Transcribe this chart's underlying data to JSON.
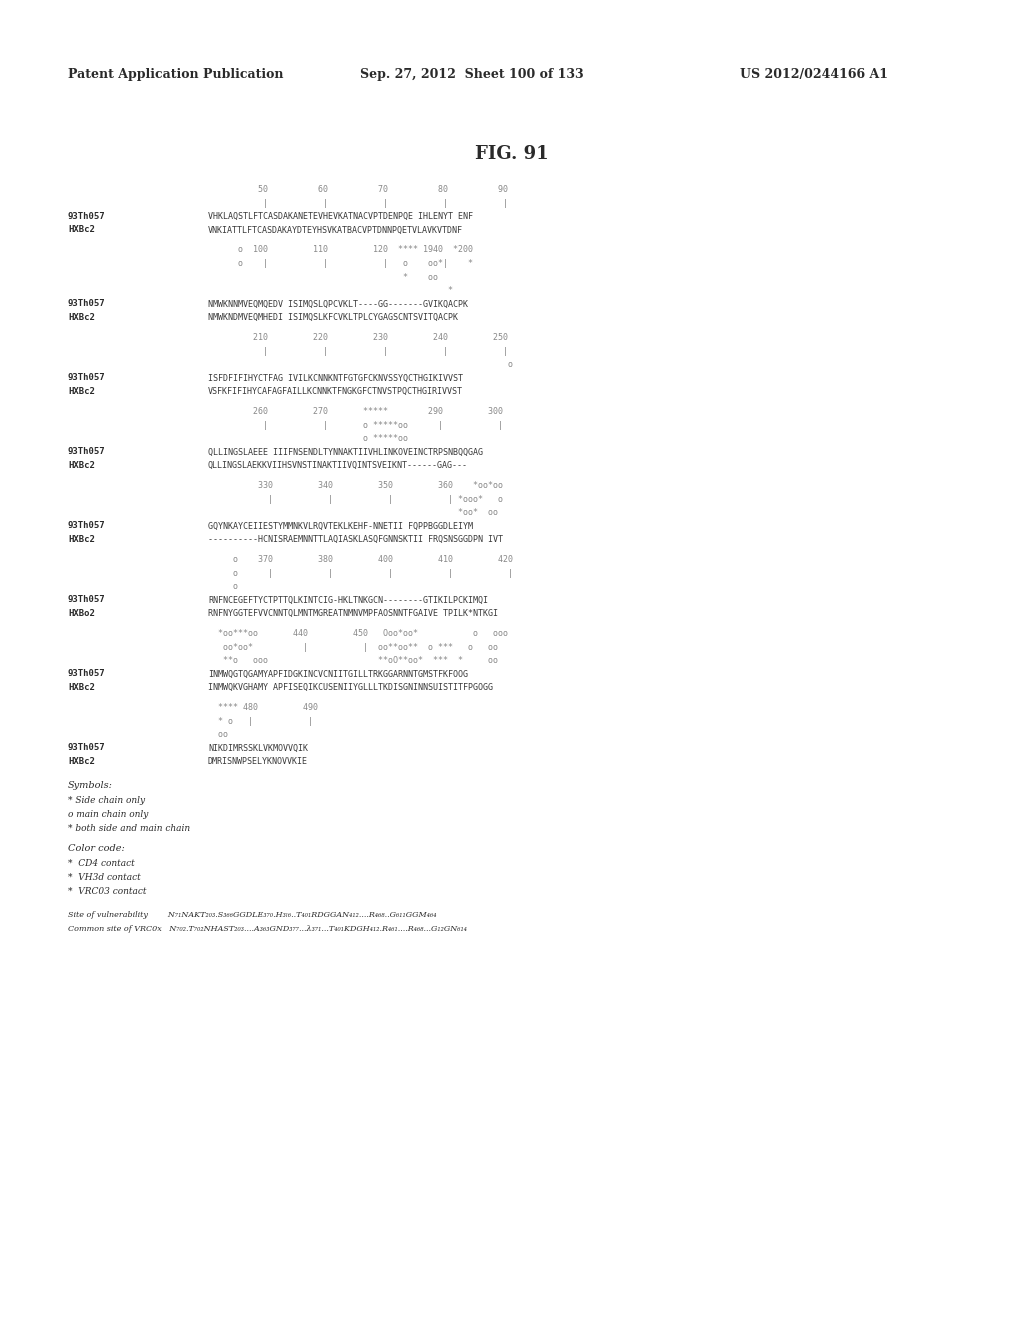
{
  "header_left": "Patent Application Publication",
  "header_center": "Sep. 27, 2012  Sheet 100 of 133",
  "header_right": "US 2012/0244166 A1",
  "figure_title": "FIG. 91",
  "background_color": "#ffffff",
  "text_color": "#2a2a2a",
  "blocks": [
    {
      "ruler": "          50          60          70          80          90",
      "ticks": [
        "           |           |           |           |           |"
      ],
      "label1": "93Th057",
      "seq1": "VHKLAQSTLFTCASDAKANETEVHEVKATNACVPTDENPQE IHLENYT ENF",
      "label2": "HXBc2",
      "seq2": "VNKIATTLFTCASDAKAYDTEYHSVKATBACVPTDNNPQETVLAVKVTDNF"
    },
    {
      "ruler": "      o  100         110         120  **** 1940  *200",
      "ticks": [
        "      o    |           |           |   o    oo*|    *",
        "                                       *    oo",
        "                                                *"
      ],
      "label1": "93Th057",
      "seq1": "NMWKNNMVEQMQEDV ISIMQSLQPCVKLT----GG-------GVIKQACPK",
      "label2": "HXBc2",
      "seq2": "NMWKNDMVEQMHEDI ISIMQSLKFCVKLTPLCYGAGSCNTSVITQACPK"
    },
    {
      "ruler": "         210         220         230         240         250",
      "ticks": [
        "           |           |           |           |           |",
        "                                                            o"
      ],
      "label1": "93Th057",
      "seq1": "ISFDFIFIHYCTFAG IVILKCNNKNTFGTGFCKNVSSYQCTHGIKIVVST",
      "label2": "HXBc2",
      "seq2": "VSFKFIFIHYCAFAGFAILLKCNNKTFNGKGFCTNVSTPQCTHGIRIVVST"
    },
    {
      "ruler": "         260         270       *****        290         300",
      "ticks": [
        "           |           |       o *****oo      |           |",
        "                               o *****oo"
      ],
      "label1": "93Th057",
      "seq1": "QLLINGSLAEEE IIIFNSENDLTYNNAKTIIVHLINKOVEINCTRPSNBQQGAG",
      "label2": "HXBc2",
      "seq2": "QLLINGSLAEKKVIIHSVNSTINAKTIIVQINTSVEIKNT------GAG---"
    },
    {
      "ruler": "          330         340         350         360    *oo*oo",
      "ticks": [
        "            |           |           |           | *ooo*   o",
        "                                                  *oo*  oo"
      ],
      "label1": "93Th057",
      "seq1": "GQYNKAYCEIIESTYMMNKVLRQVTEKLKEHF-NNETII FQPPBGGDLEIYM",
      "label2": "HXBc2",
      "seq2": "----------HCNISRAEMNNTTLAQIASKLASQFGNNSKTII FRQSNSGGDPN IVT"
    },
    {
      "ruler": "     o    370         380         400         410         420",
      "ticks": [
        "     o      |           |           |           |           |",
        "     o"
      ],
      "label1": "93Th057",
      "seq1": "RNFNCEGEFTYCTPTTQLKINTCIG-HKLTNKGCN--------GTIKILPCKIMQI",
      "label2": "HXBo2",
      "seq2": "RNFNYGGTEFVVCNNTQLMNTMGREATNMNVMPFAOSNNTFGAIVE TPILK*NTKGI"
    },
    {
      "ruler": "  *oo***oo       440         450   Ooo*oo*           o   ooo",
      "ticks": [
        "   oo*oo*          |           |  oo**oo**  o ***   o   oo",
        "   **o   ooo                      **oO**oo*  ***  *     oo"
      ],
      "label1": "93Th057",
      "seq1": "INMWQGTQGAMYAPFIDGKINCVCNIITGILLTRKGGARNNTGMSTFKFOOG",
      "label2": "HXBc2",
      "seq2": "INMWQKVGHAMY APFISEQIKCUSENIIYGLLLTKDISGNINNSUISTITFPGOGG"
    },
    {
      "ruler": "  **** 480         490",
      "ticks": [
        "  * o   |           |",
        "  oo"
      ],
      "label1": "93Th057",
      "seq1": "NIKDIMRSSKLVKMOVVQIK",
      "label2": "HXBc2",
      "seq2": "DMRISNWPSELYKNOVVKIE"
    }
  ],
  "symbols_title": "Symbols:",
  "symbols": [
    "* Side chain only",
    "o main chain only",
    "* both side and main chain"
  ],
  "color_code_title": "Color code:",
  "color_codes": [
    "*  CD4 contact",
    "*  VH3d contact",
    "*  VRC03 contact"
  ],
  "site_vulnerability": "Site of vulnerability        N₇₁NAKT₂₀₃.S₃₆₆GGDLE₃₇₀.H₃ₗ₆..T₄₀₁RDGGAN₄₁₂....R₄₆₈..G₆₁₁GGM₄₆₄",
  "common_site": "Common site of VRC0x   N₇₀₂.T₇₀₂NHAST₂₀₃....A₃₆₃GND₃₇₇...λ₃₇₁...T₄₀₁KDGH₄₁₂.R₄₆₁....R₄₆₈...G₁₂GN₆₁₄"
}
